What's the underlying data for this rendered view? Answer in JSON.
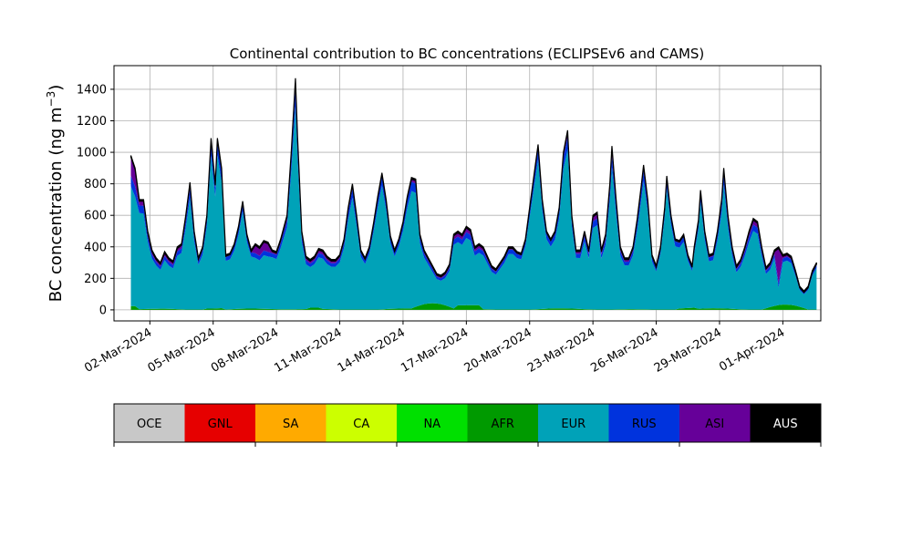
{
  "chart_data": {
    "type": "area",
    "title": "Continental contribution to BC concentrations (ECLIPSEv6 and CAMS)",
    "ylabel_prefix": "BC concentration (ng m",
    "ylabel_exp": "−3",
    "ylabel_suffix": ")",
    "ylim": [
      -70,
      1550
    ],
    "xlim": [
      -0.7,
      32.8
    ],
    "yticks": [
      0,
      200,
      400,
      600,
      800,
      1000,
      1200,
      1400
    ],
    "xticks": [
      {
        "label": "02-Mar-2024",
        "day": 1
      },
      {
        "label": "05-Mar-2024",
        "day": 4
      },
      {
        "label": "08-Mar-2024",
        "day": 7
      },
      {
        "label": "11-Mar-2024",
        "day": 10
      },
      {
        "label": "14-Mar-2024",
        "day": 13
      },
      {
        "label": "17-Mar-2024",
        "day": 16
      },
      {
        "label": "20-Mar-2024",
        "day": 19
      },
      {
        "label": "23-Mar-2024",
        "day": 22
      },
      {
        "label": "26-Mar-2024",
        "day": 25
      },
      {
        "label": "29-Mar-2024",
        "day": 28
      },
      {
        "label": "01-Apr-2024",
        "day": 31
      }
    ],
    "grid": true,
    "stack_order": [
      "AFR",
      "EUR",
      "RUS",
      "ASI",
      "AUS"
    ],
    "total_profile": [
      [
        0.1,
        980
      ],
      [
        0.3,
        900
      ],
      [
        0.5,
        700
      ],
      [
        0.7,
        700
      ],
      [
        0.9,
        500
      ],
      [
        1.1,
        380
      ],
      [
        1.3,
        330
      ],
      [
        1.5,
        300
      ],
      [
        1.7,
        370
      ],
      [
        1.9,
        330
      ],
      [
        2.1,
        310
      ],
      [
        2.3,
        400
      ],
      [
        2.5,
        420
      ],
      [
        2.7,
        600
      ],
      [
        2.9,
        810
      ],
      [
        3.1,
        500
      ],
      [
        3.3,
        330
      ],
      [
        3.5,
        400
      ],
      [
        3.7,
        600
      ],
      [
        3.9,
        1090
      ],
      [
        4.1,
        800
      ],
      [
        4.2,
        1090
      ],
      [
        4.4,
        900
      ],
      [
        4.6,
        350
      ],
      [
        4.8,
        360
      ],
      [
        5.0,
        420
      ],
      [
        5.2,
        530
      ],
      [
        5.4,
        690
      ],
      [
        5.6,
        480
      ],
      [
        5.8,
        380
      ],
      [
        6.0,
        420
      ],
      [
        6.2,
        400
      ],
      [
        6.4,
        440
      ],
      [
        6.6,
        430
      ],
      [
        6.8,
        380
      ],
      [
        7.0,
        370
      ],
      [
        7.2,
        450
      ],
      [
        7.5,
        600
      ],
      [
        7.7,
        1000
      ],
      [
        7.9,
        1470
      ],
      [
        8.0,
        1100
      ],
      [
        8.2,
        500
      ],
      [
        8.4,
        340
      ],
      [
        8.6,
        320
      ],
      [
        8.8,
        340
      ],
      [
        9.0,
        390
      ],
      [
        9.2,
        380
      ],
      [
        9.4,
        340
      ],
      [
        9.6,
        320
      ],
      [
        9.8,
        320
      ],
      [
        10.0,
        350
      ],
      [
        10.2,
        450
      ],
      [
        10.4,
        650
      ],
      [
        10.6,
        800
      ],
      [
        10.8,
        600
      ],
      [
        11.0,
        380
      ],
      [
        11.2,
        330
      ],
      [
        11.4,
        400
      ],
      [
        11.6,
        550
      ],
      [
        11.8,
        720
      ],
      [
        12.0,
        870
      ],
      [
        12.2,
        700
      ],
      [
        12.4,
        470
      ],
      [
        12.6,
        380
      ],
      [
        12.8,
        450
      ],
      [
        13.0,
        560
      ],
      [
        13.2,
        720
      ],
      [
        13.4,
        840
      ],
      [
        13.6,
        830
      ],
      [
        13.8,
        480
      ],
      [
        14.0,
        380
      ],
      [
        14.2,
        330
      ],
      [
        14.4,
        280
      ],
      [
        14.6,
        230
      ],
      [
        14.8,
        220
      ],
      [
        15.0,
        240
      ],
      [
        15.2,
        290
      ],
      [
        15.4,
        480
      ],
      [
        15.6,
        500
      ],
      [
        15.8,
        480
      ],
      [
        16.0,
        530
      ],
      [
        16.2,
        510
      ],
      [
        16.4,
        400
      ],
      [
        16.6,
        420
      ],
      [
        16.8,
        400
      ],
      [
        17.0,
        340
      ],
      [
        17.2,
        280
      ],
      [
        17.4,
        260
      ],
      [
        17.6,
        300
      ],
      [
        17.8,
        340
      ],
      [
        18.0,
        400
      ],
      [
        18.2,
        400
      ],
      [
        18.4,
        370
      ],
      [
        18.6,
        360
      ],
      [
        18.8,
        450
      ],
      [
        19.0,
        650
      ],
      [
        19.2,
        850
      ],
      [
        19.4,
        1050
      ],
      [
        19.6,
        700
      ],
      [
        19.8,
        500
      ],
      [
        20.0,
        450
      ],
      [
        20.2,
        500
      ],
      [
        20.4,
        650
      ],
      [
        20.6,
        1000
      ],
      [
        20.8,
        1140
      ],
      [
        21.0,
        600
      ],
      [
        21.2,
        380
      ],
      [
        21.4,
        380
      ],
      [
        21.6,
        500
      ],
      [
        21.8,
        380
      ],
      [
        22.0,
        600
      ],
      [
        22.2,
        620
      ],
      [
        22.4,
        380
      ],
      [
        22.6,
        480
      ],
      [
        22.8,
        800
      ],
      [
        22.9,
        1040
      ],
      [
        23.1,
        700
      ],
      [
        23.3,
        400
      ],
      [
        23.5,
        330
      ],
      [
        23.7,
        330
      ],
      [
        23.9,
        400
      ],
      [
        24.1,
        580
      ],
      [
        24.3,
        800
      ],
      [
        24.4,
        920
      ],
      [
        24.6,
        700
      ],
      [
        24.8,
        350
      ],
      [
        25.0,
        280
      ],
      [
        25.2,
        400
      ],
      [
        25.4,
        650
      ],
      [
        25.5,
        850
      ],
      [
        25.7,
        600
      ],
      [
        25.9,
        450
      ],
      [
        26.1,
        440
      ],
      [
        26.3,
        480
      ],
      [
        26.5,
        350
      ],
      [
        26.7,
        280
      ],
      [
        26.8,
        400
      ],
      [
        27.0,
        570
      ],
      [
        27.1,
        760
      ],
      [
        27.3,
        500
      ],
      [
        27.5,
        350
      ],
      [
        27.7,
        360
      ],
      [
        27.9,
        500
      ],
      [
        28.1,
        700
      ],
      [
        28.2,
        900
      ],
      [
        28.4,
        600
      ],
      [
        28.6,
        400
      ],
      [
        28.8,
        280
      ],
      [
        29.0,
        320
      ],
      [
        29.2,
        400
      ],
      [
        29.4,
        500
      ],
      [
        29.6,
        580
      ],
      [
        29.8,
        560
      ],
      [
        30.0,
        400
      ],
      [
        30.2,
        270
      ],
      [
        30.4,
        300
      ],
      [
        30.6,
        380
      ],
      [
        30.8,
        400
      ],
      [
        31.0,
        350
      ],
      [
        31.2,
        360
      ],
      [
        31.4,
        340
      ],
      [
        31.6,
        250
      ],
      [
        31.8,
        150
      ],
      [
        32.0,
        120
      ],
      [
        32.2,
        150
      ],
      [
        32.4,
        250
      ],
      [
        32.6,
        300
      ]
    ],
    "legend": [
      {
        "name": "OCE",
        "color": "#c8c8c8",
        "text_color": "#000000"
      },
      {
        "name": "GNL",
        "color": "#e60000",
        "text_color": "#000000"
      },
      {
        "name": "SA",
        "color": "#ffaa00",
        "text_color": "#000000"
      },
      {
        "name": "CA",
        "color": "#ccff00",
        "text_color": "#000000"
      },
      {
        "name": "NA",
        "color": "#00e000",
        "text_color": "#000000"
      },
      {
        "name": "AFR",
        "color": "#009a00",
        "text_color": "#000000"
      },
      {
        "name": "EUR",
        "color": "#00a2b8",
        "text_color": "#000000"
      },
      {
        "name": "RUS",
        "color": "#0033dd",
        "text_color": "#000000"
      },
      {
        "name": "ASI",
        "color": "#660099",
        "text_color": "#000000"
      },
      {
        "name": "AUS",
        "color": "#000000",
        "text_color": "#ffffff"
      }
    ]
  }
}
